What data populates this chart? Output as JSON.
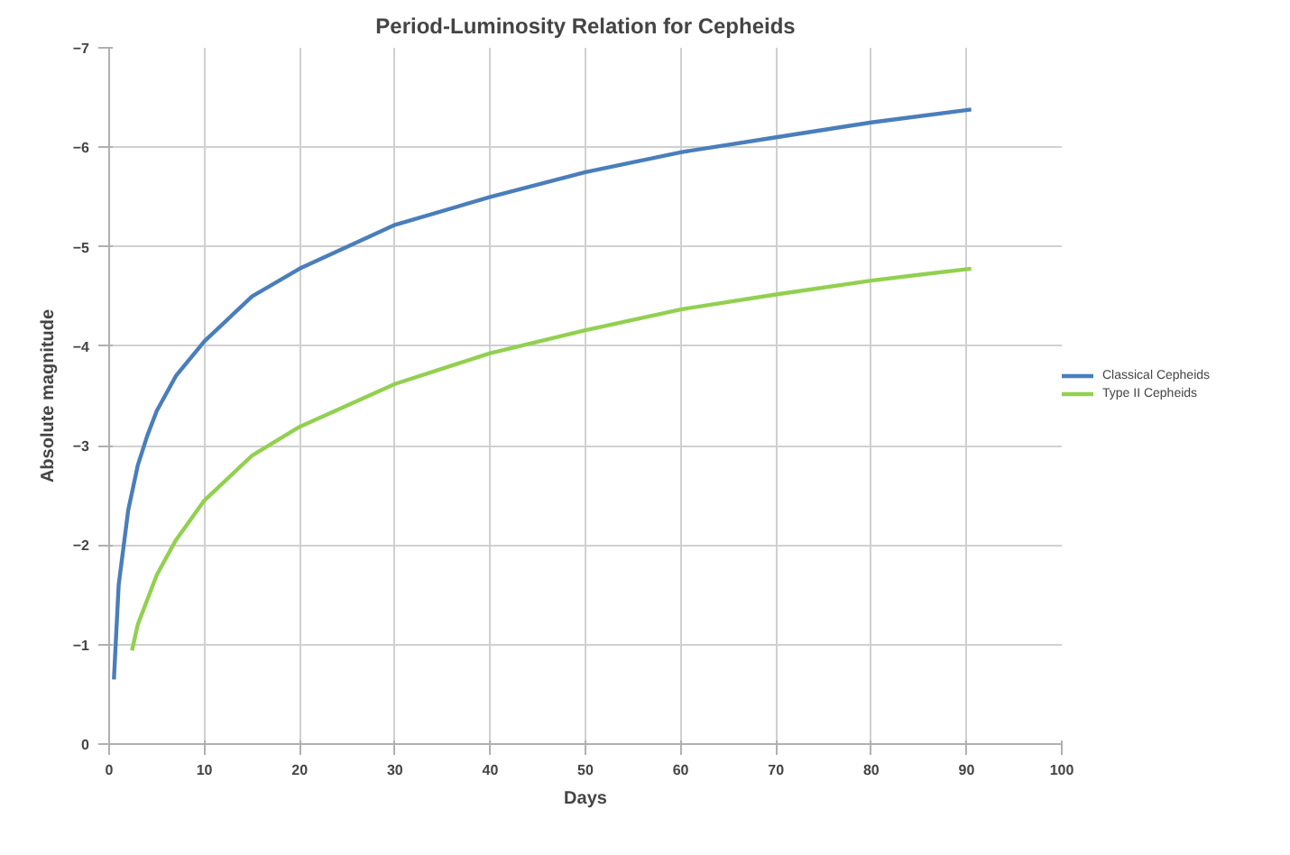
{
  "chart_data": {
    "type": "line",
    "title": "Period-Luminosity Relation for Cepheids",
    "xlabel": "Days",
    "ylabel": "Absolute magnitude",
    "xlim": [
      0,
      100
    ],
    "xticks": [
      0,
      10,
      20,
      30,
      40,
      50,
      60,
      70,
      80,
      90,
      100
    ],
    "ylim": [
      0,
      -7
    ],
    "yticks": [
      0,
      -1,
      -2,
      -3,
      -4,
      -5,
      -6,
      -7
    ],
    "grid": true,
    "legend": "right",
    "marker": "none",
    "line_style": "solid",
    "series": [
      {
        "name": "Classical Cepheids",
        "color": "#4a7ebb",
        "x": [
          0.5,
          1,
          2,
          3,
          4,
          5,
          7,
          10,
          15,
          20,
          30,
          40,
          50,
          60,
          70,
          80,
          90.5
        ],
        "values": [
          -0.65,
          -1.6,
          -2.35,
          -2.8,
          -3.1,
          -3.35,
          -3.7,
          -4.05,
          -4.5,
          -4.78,
          -5.22,
          -5.5,
          -5.75,
          -5.95,
          -6.1,
          -6.25,
          -6.38
        ]
      },
      {
        "name": "Type II Cepheids",
        "color": "#92d050",
        "x": [
          2.4,
          3,
          4,
          5,
          7,
          10,
          15,
          20,
          30,
          40,
          50,
          60,
          70,
          80,
          90.5
        ],
        "values": [
          -0.94,
          -1.2,
          -1.45,
          -1.7,
          -2.05,
          -2.45,
          -2.9,
          -3.19,
          -3.62,
          -3.93,
          -4.16,
          -4.37,
          -4.52,
          -4.66,
          -4.78
        ]
      }
    ]
  }
}
